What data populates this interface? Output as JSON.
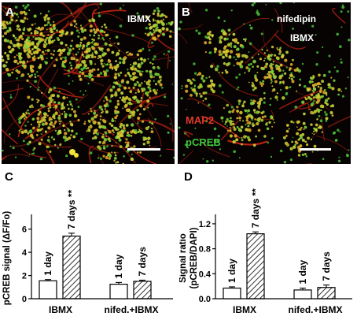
{
  "figure": {
    "panel_a": {
      "label": "A",
      "condition": "IBMX"
    },
    "panel_b": {
      "label": "B",
      "condition_1": "nifedipin",
      "condition_2": "IBMX",
      "legend_map2": "MAP2",
      "legend_pcreb": "pCREB",
      "legend_map2_color": "#e03a2a",
      "legend_pcreb_color": "#3ec83a"
    }
  },
  "chart_data": [
    {
      "panel": "C",
      "type": "bar",
      "ylabel": "pCREB signal (ΔF/Fo)",
      "ylim": [
        0,
        7
      ],
      "yticks": [
        "0",
        "2",
        "4",
        "6"
      ],
      "groups": [
        "IBMX",
        "nifed.+IBMX"
      ],
      "bar_labels": [
        "1 day",
        "7 days",
        "1 day",
        "7 days"
      ],
      "significance": "**",
      "series": [
        {
          "name": "1 day",
          "style": "open",
          "values": [
            1.55,
            1.25
          ],
          "errors": [
            0.1,
            0.15
          ]
        },
        {
          "name": "7 days",
          "style": "hatched",
          "values": [
            5.4,
            1.5
          ],
          "errors": [
            0.25,
            0.1
          ]
        }
      ]
    },
    {
      "panel": "D",
      "type": "bar",
      "ylabel": "Signal ratio (pCREB/DAPI)",
      "ylim": [
        0,
        1.3
      ],
      "yticks": [
        "0.0",
        "0.4",
        "0.8",
        "1.2"
      ],
      "groups": [
        "IBMX",
        "nifed.+IBMX"
      ],
      "bar_labels": [
        "1 day",
        "7 days",
        "1 day",
        "7 days"
      ],
      "significance": "**",
      "series": [
        {
          "name": "1 day",
          "style": "open",
          "values": [
            0.17,
            0.14
          ],
          "errors": [
            0.02,
            0.03
          ]
        },
        {
          "name": "7 days",
          "style": "hatched",
          "values": [
            1.04,
            0.18
          ],
          "errors": [
            0.03,
            0.04
          ]
        }
      ]
    }
  ]
}
